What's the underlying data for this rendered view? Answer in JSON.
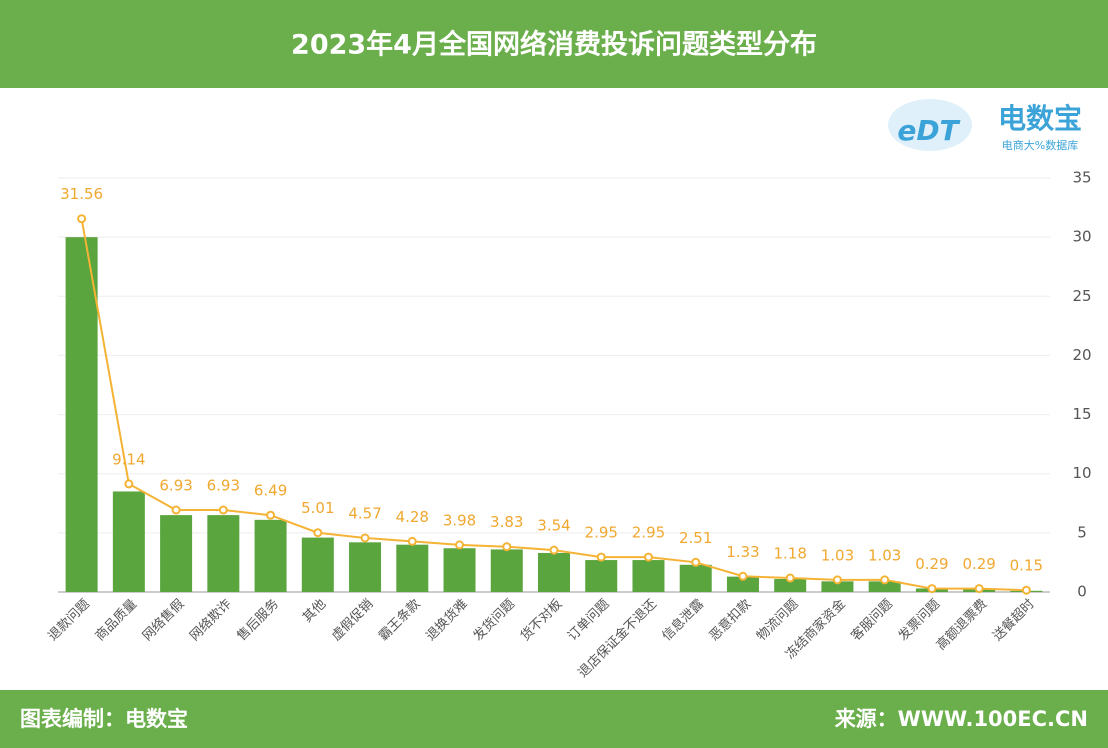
{
  "chart_data": {
    "type": "bar-line",
    "title": "2023年4月全国网络消费投诉问题类型分布",
    "categories": [
      "退款问题",
      "商品质量",
      "网络售假",
      "网络欺诈",
      "售后服务",
      "其他",
      "虚假促销",
      "霸王条款",
      "退换货难",
      "发货问题",
      "货不对板",
      "订单问题",
      "退店保证金不退还",
      "信息泄露",
      "恶意扣款",
      "物流问题",
      "冻结商家资金",
      "客服问题",
      "发票问题",
      "高额退票费",
      "送餐超时"
    ],
    "series": [
      {
        "type": "bar",
        "color": "#5ba53f",
        "values": [
          30,
          8.5,
          6.5,
          6.5,
          6.1,
          4.6,
          4.2,
          4.0,
          3.7,
          3.6,
          3.3,
          2.7,
          2.7,
          2.3,
          1.3,
          1.1,
          0.9,
          0.9,
          0.3,
          0.3,
          0.1
        ]
      },
      {
        "type": "line",
        "color": "#f5b335",
        "values": [
          31.56,
          9.14,
          6.93,
          6.93,
          6.49,
          5.01,
          4.57,
          4.28,
          3.98,
          3.83,
          3.54,
          2.95,
          2.95,
          2.51,
          1.33,
          1.18,
          1.03,
          1.03,
          0.29,
          0.29,
          0.15
        ]
      }
    ],
    "ylim": [
      0,
      35
    ],
    "yticks": [
      0,
      5,
      10,
      15,
      20,
      25,
      30,
      35
    ],
    "grid": true
  },
  "logo": {
    "mark": "eDT",
    "brand": "电数宝",
    "tagline": "电商大%数据库"
  },
  "footer": {
    "left": "图表编制：电数宝",
    "right": "来源：WWW.100EC.CN"
  }
}
